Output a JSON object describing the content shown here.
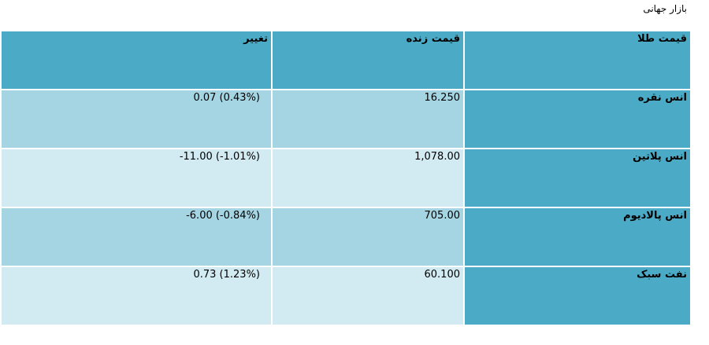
{
  "page": {
    "title": "بازار جهانی"
  },
  "colors": {
    "header_bg": "#4BABC6",
    "label_bg": "#4BABC6",
    "row_dark_bg": "#A5D5E2",
    "row_light_bg": "#D2EAF1"
  },
  "table": {
    "headers": [
      "قیمت طلا",
      "قیمت زنده",
      "تغییر"
    ],
    "rows": [
      {
        "label": "انس نقره",
        "price": "16.250",
        "change": "0.07 (0.43%)"
      },
      {
        "label": "انس پلاتین",
        "price": "1,078.00",
        "change": "-11.00 (-1.01%)"
      },
      {
        "label": "انس پالادیوم",
        "price": "705.00",
        "change": "-6.00 (-0.84%)"
      },
      {
        "label": "نفت سبک",
        "price": "60.100",
        "change": "0.73 (1.23%)"
      }
    ]
  }
}
